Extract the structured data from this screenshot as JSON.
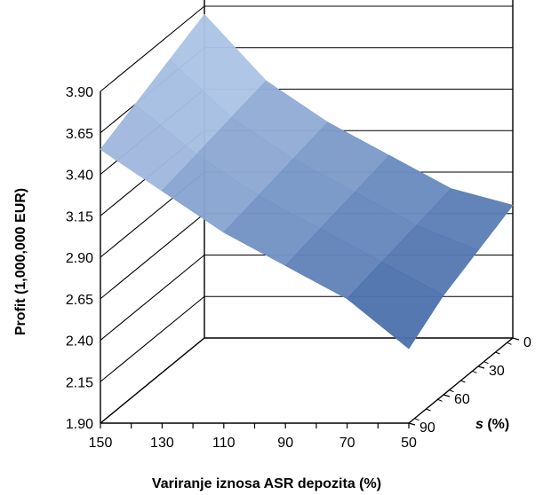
{
  "chart_data": {
    "type": "surface",
    "title": "",
    "xlabel": "Variranje iznosa ASR depozita (%)",
    "ylabel": "Profit (1,000,000 EUR)",
    "zlabel_symbol": "s",
    "zlabel_unit": " (%)",
    "x_ticks": [
      "150",
      "130",
      "110",
      "90",
      "70",
      "50"
    ],
    "y_ticks": [
      "3.90",
      "3.65",
      "3.40",
      "3.15",
      "2.90",
      "2.65",
      "2.40",
      "2.15",
      "1.90"
    ],
    "z_ticks": [
      "0",
      "30",
      "60",
      "90"
    ],
    "ylim": [
      1.9,
      3.9
    ],
    "x": [
      150,
      130,
      110,
      90,
      70,
      50
    ],
    "s": [
      90,
      60,
      30,
      0
    ],
    "series": [
      {
        "name": "s = 90",
        "values": [
          3.55,
          3.3,
          3.05,
          2.85,
          2.65,
          2.35
        ]
      },
      {
        "name": "s = 60",
        "values": [
          3.65,
          3.35,
          3.1,
          2.9,
          2.7,
          2.5
        ]
      },
      {
        "name": "s = 30",
        "values": [
          3.75,
          3.4,
          3.15,
          2.95,
          2.75,
          2.6
        ]
      },
      {
        "name": "s = 0",
        "values": [
          3.85,
          3.45,
          3.2,
          3.0,
          2.8,
          2.7
        ]
      }
    ],
    "colors": {
      "surface_low": "#3d6aa8",
      "surface_high": "#bccbe8",
      "edge": "#000000"
    },
    "grid": true
  }
}
